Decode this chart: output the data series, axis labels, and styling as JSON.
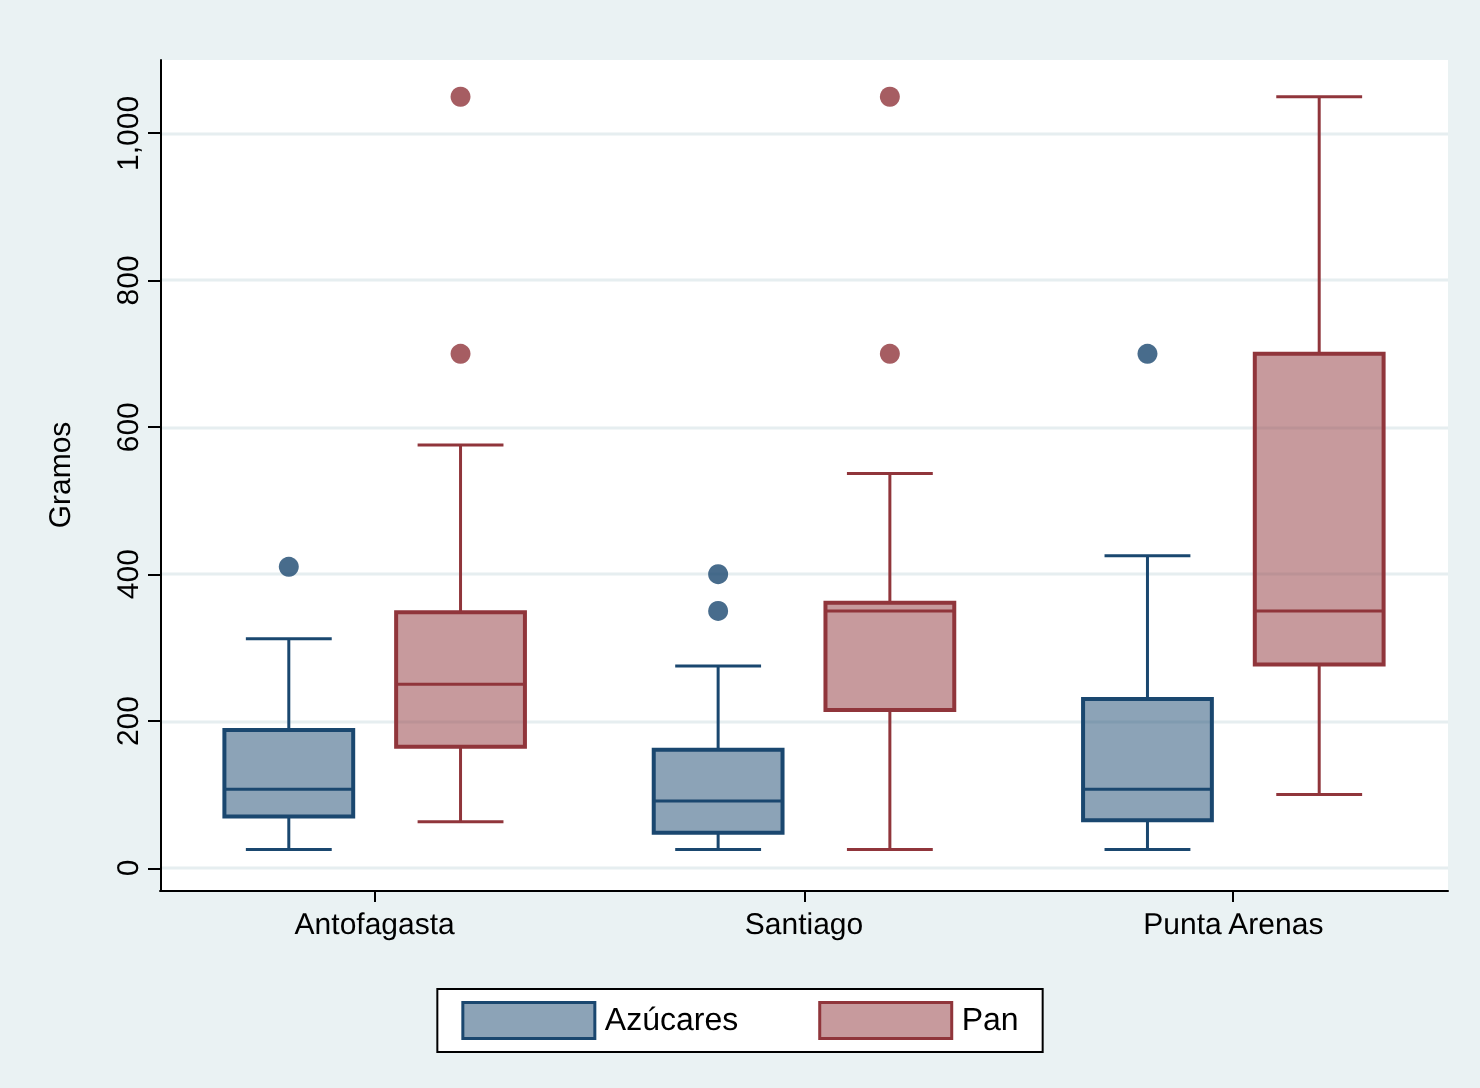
{
  "chart_data": {
    "type": "box",
    "ylabel": "Gramos",
    "categories": [
      "Antofagasta",
      "Santiago",
      "Punta Arenas"
    ],
    "series": [
      {
        "name": "Azúcares",
        "color": "#1a476f",
        "boxes": [
          {
            "low": 25,
            "q1": 70,
            "median": 107,
            "q3": 188,
            "high": 312,
            "outliers": [
              410
            ]
          },
          {
            "low": 25,
            "q1": 48,
            "median": 91,
            "q3": 161,
            "high": 275,
            "outliers": [
              350,
              400
            ]
          },
          {
            "low": 25,
            "q1": 65,
            "median": 107,
            "q3": 230,
            "high": 425,
            "outliers": [
              700
            ]
          }
        ]
      },
      {
        "name": "Pan",
        "color": "#90353b",
        "boxes": [
          {
            "low": 63,
            "q1": 165,
            "median": 250,
            "q3": 348,
            "high": 576,
            "outliers": [
              700,
              1050
            ]
          },
          {
            "low": 25,
            "q1": 215,
            "median": 350,
            "q3": 361,
            "high": 537,
            "outliers": [
              700,
              1050
            ]
          },
          {
            "low": 100,
            "q1": 277,
            "median": 350,
            "q3": 700,
            "high": 1050
          }
        ]
      }
    ],
    "ylim": [
      -30,
      1100
    ],
    "yticks": [
      0,
      200,
      400,
      600,
      800,
      {
        "value": 1000,
        "label": "1,000"
      }
    ],
    "grid": "y",
    "legend": "bottom"
  }
}
